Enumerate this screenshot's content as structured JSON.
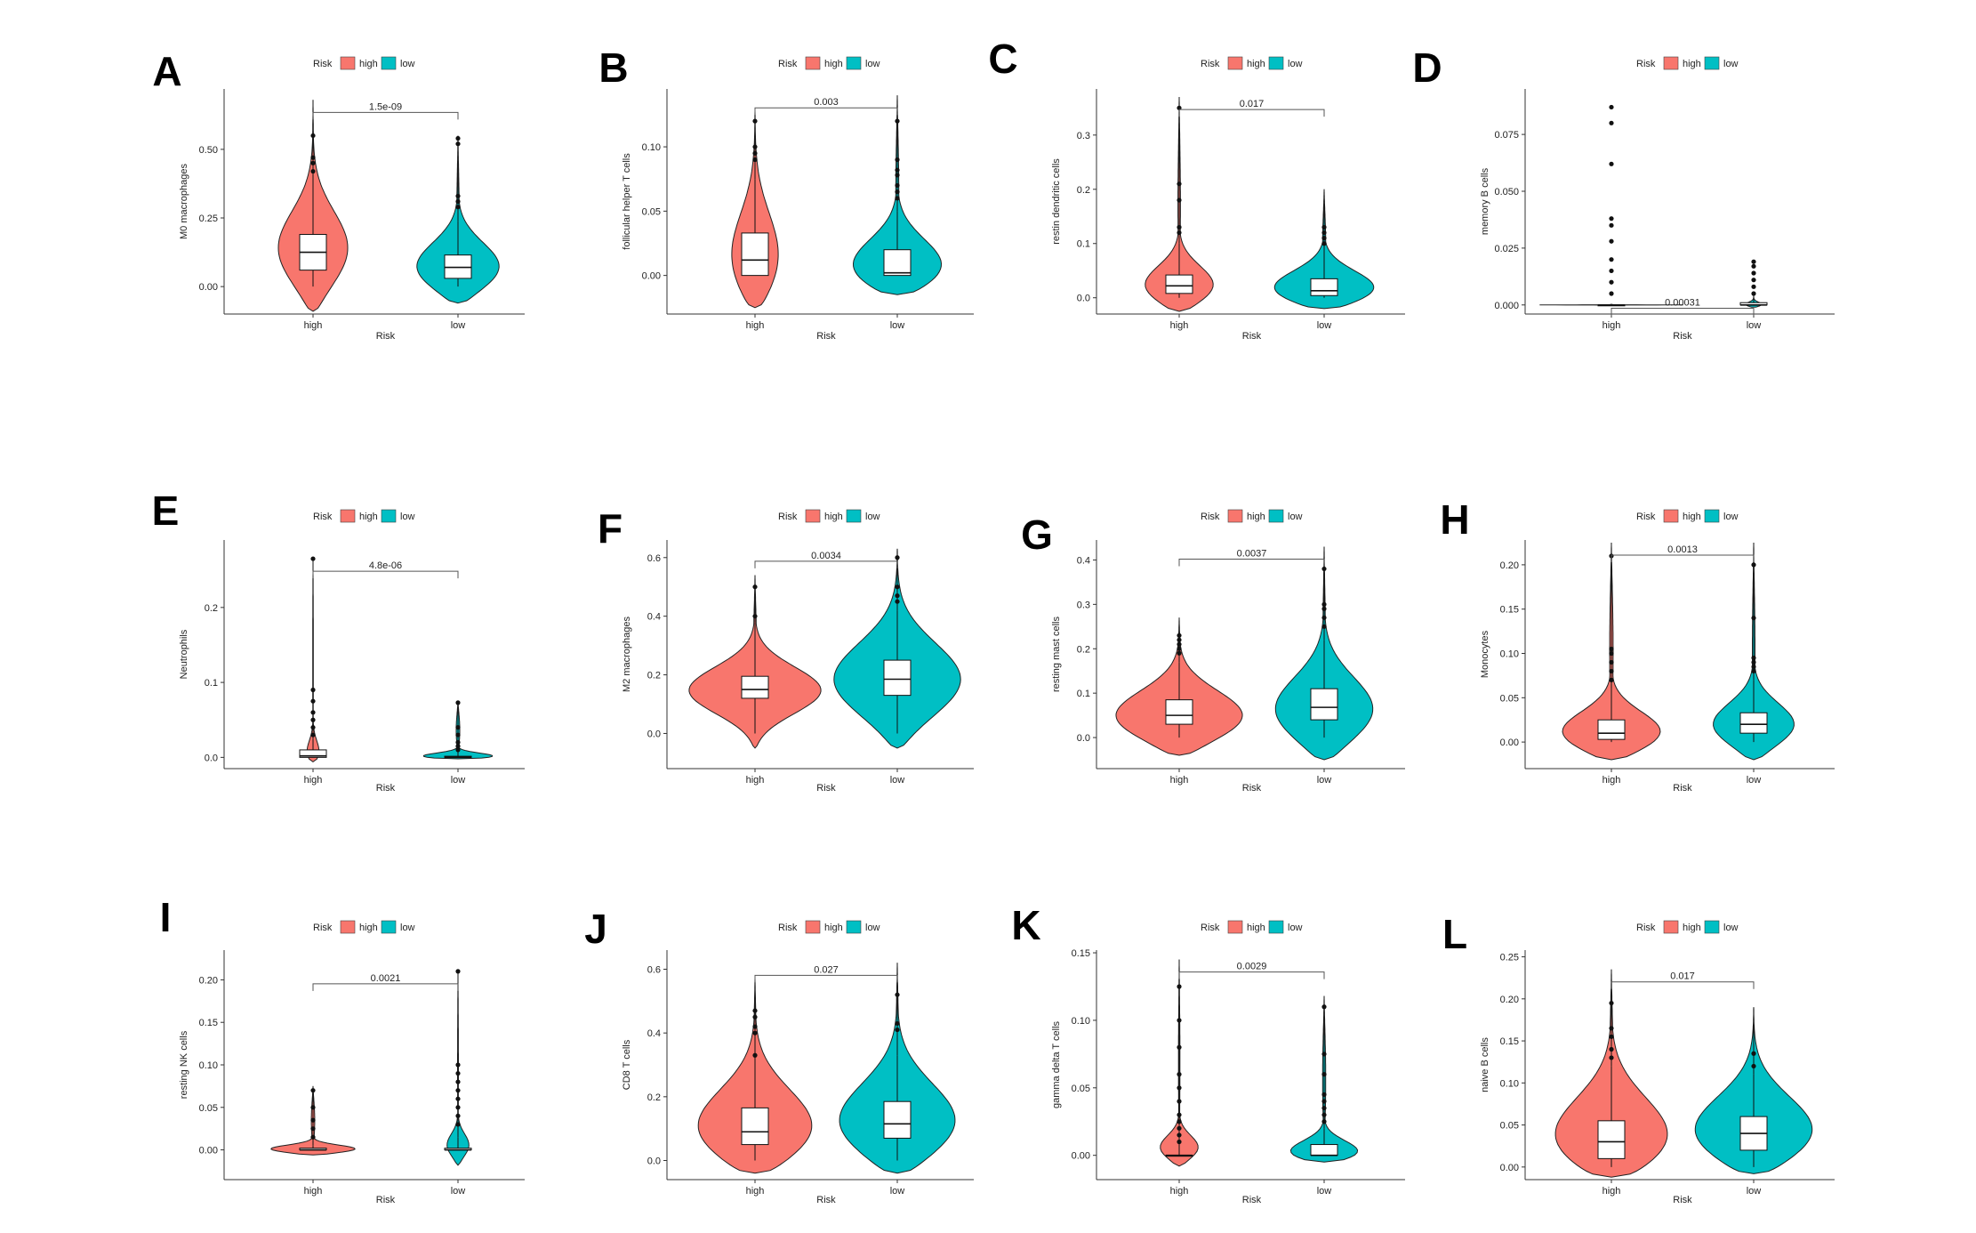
{
  "colors": {
    "high": "#F8766D",
    "low": "#00BFC4",
    "axis": "#333333"
  },
  "legend": {
    "title": "Risk",
    "items": [
      "high",
      "low"
    ]
  },
  "chart_data": [
    {
      "panel": "A",
      "type": "violin",
      "ylabel": "M0 macrophages",
      "xlabel": "Risk",
      "categories": [
        "high",
        "low"
      ],
      "ticks": [
        "0.00",
        "0.25",
        "0.50"
      ],
      "tick_values": [
        0,
        0.25,
        0.5
      ],
      "ylim": [
        -0.1,
        0.72
      ],
      "pvalue": "1.5e-09",
      "groups": [
        {
          "name": "high",
          "min": 0.0,
          "q1": 0.06,
          "median": 0.125,
          "q3": 0.19,
          "max": 0.5,
          "vmin": -0.09,
          "vmax": 0.68,
          "mode": 0.12,
          "width": 0.5,
          "outliers": [
            0.42,
            0.45,
            0.47,
            0.55
          ]
        },
        {
          "name": "low",
          "min": 0.0,
          "q1": 0.03,
          "median": 0.07,
          "q3": 0.115,
          "max": 0.24,
          "vmin": -0.06,
          "vmax": 0.55,
          "mode": 0.055,
          "width": 0.65,
          "outliers": [
            0.29,
            0.31,
            0.33,
            0.52,
            0.54
          ]
        }
      ]
    },
    {
      "panel": "B",
      "type": "violin",
      "ylabel": "follicular helper T cells",
      "xlabel": "Risk",
      "categories": [
        "high",
        "low"
      ],
      "ticks": [
        "0.00",
        "0.05",
        "0.10"
      ],
      "tick_values": [
        0,
        0.05,
        0.1
      ],
      "ylim": [
        -0.03,
        0.145
      ],
      "pvalue": "0.003",
      "groups": [
        {
          "name": "high",
          "min": 0.0,
          "q1": 0.0,
          "median": 0.012,
          "q3": 0.033,
          "max": 0.075,
          "vmin": -0.025,
          "vmax": 0.13,
          "mode": 0.008,
          "width": 0.35,
          "outliers": [
            0.09,
            0.095,
            0.1,
            0.12
          ]
        },
        {
          "name": "low",
          "min": 0.0,
          "q1": 0.0,
          "median": 0.002,
          "q3": 0.02,
          "max": 0.05,
          "vmin": -0.015,
          "vmax": 0.14,
          "mode": 0.002,
          "width": 0.8,
          "outliers": [
            0.06,
            0.065,
            0.07,
            0.078,
            0.082,
            0.09,
            0.12
          ]
        }
      ]
    },
    {
      "panel": "C",
      "type": "violin",
      "ylabel": "restin dendritic cells",
      "xlabel": "Risk",
      "categories": [
        "high",
        "low"
      ],
      "ticks": [
        "0.0",
        "0.1",
        "0.2",
        "0.3"
      ],
      "tick_values": [
        0,
        0.1,
        0.2,
        0.3
      ],
      "ylim": [
        -0.03,
        0.385
      ],
      "pvalue": "0.017",
      "groups": [
        {
          "name": "high",
          "min": 0.0,
          "q1": 0.008,
          "median": 0.022,
          "q3": 0.042,
          "max": 0.1,
          "vmin": -0.025,
          "vmax": 0.37,
          "mode": 0.015,
          "width": 0.65,
          "outliers": [
            0.12,
            0.13,
            0.18,
            0.21,
            0.35
          ]
        },
        {
          "name": "low",
          "min": 0.0,
          "q1": 0.004,
          "median": 0.013,
          "q3": 0.035,
          "max": 0.08,
          "vmin": -0.02,
          "vmax": 0.2,
          "mode": 0.01,
          "width": 0.85,
          "outliers": [
            0.1,
            0.11,
            0.12,
            0.13
          ]
        }
      ]
    },
    {
      "panel": "D",
      "type": "violin",
      "ylabel": "memory B cells",
      "xlabel": "Risk",
      "categories": [
        "high",
        "low"
      ],
      "ticks": [
        "0.000",
        "0.025",
        "0.050",
        "0.075"
      ],
      "tick_values": [
        0,
        0.025,
        0.05,
        0.075
      ],
      "ylim": [
        -0.004,
        0.095
      ],
      "pvalue": "0.00031",
      "groups": [
        {
          "name": "high",
          "min": 0.0,
          "q1": 0.0,
          "median": 0.0,
          "q3": 0.0,
          "max": 0.0,
          "vmin": -0.0003,
          "vmax": 0.0003,
          "mode": 0.0,
          "width": 0.95,
          "outliers": [
            0.005,
            0.01,
            0.015,
            0.02,
            0.028,
            0.035,
            0.038,
            0.062,
            0.08,
            0.087
          ]
        },
        {
          "name": "low",
          "min": 0.0,
          "q1": 0.0,
          "median": 0.0,
          "q3": 0.001,
          "max": 0.002,
          "vmin": -0.001,
          "vmax": 0.004,
          "mode": 0.0,
          "width": 0.12,
          "outliers": [
            0.005,
            0.008,
            0.011,
            0.014,
            0.017,
            0.019
          ]
        }
      ]
    },
    {
      "panel": "E",
      "type": "violin",
      "ylabel": "Neutrophils",
      "xlabel": "Risk",
      "categories": [
        "high",
        "low"
      ],
      "ticks": [
        "0.0",
        "0.1",
        "0.2"
      ],
      "tick_values": [
        0,
        0.1,
        0.2
      ],
      "ylim": [
        -0.015,
        0.29
      ],
      "pvalue": "4.8e-06",
      "groups": [
        {
          "name": "high",
          "min": 0.0,
          "q1": 0.0,
          "median": 0.002,
          "q3": 0.01,
          "max": 0.025,
          "vmin": -0.006,
          "vmax": 0.265,
          "mode": 0.002,
          "width": 0.16,
          "outliers": [
            0.03,
            0.04,
            0.05,
            0.06,
            0.075,
            0.09,
            0.265
          ]
        },
        {
          "name": "low",
          "min": 0.0,
          "q1": 0.0,
          "median": 0.0,
          "q3": 0.0015,
          "max": 0.004,
          "vmin": -0.002,
          "vmax": 0.075,
          "mode": 0.0,
          "width": 0.95,
          "outliers": [
            0.01,
            0.015,
            0.02,
            0.03,
            0.04,
            0.073
          ]
        }
      ]
    },
    {
      "panel": "F",
      "type": "violin",
      "ylabel": "M2 macrophages",
      "xlabel": "Risk",
      "categories": [
        "high",
        "low"
      ],
      "ticks": [
        "0.0",
        "0.2",
        "0.4",
        "0.6"
      ],
      "tick_values": [
        0,
        0.2,
        0.4,
        0.6
      ],
      "ylim": [
        -0.12,
        0.66
      ],
      "pvalue": "0.0034",
      "groups": [
        {
          "name": "high",
          "min": 0.0,
          "q1": 0.12,
          "median": 0.15,
          "q3": 0.195,
          "max": 0.38,
          "vmin": -0.05,
          "vmax": 0.54,
          "mode": 0.14,
          "width": 0.92,
          "outliers": [
            0.4,
            0.5
          ]
        },
        {
          "name": "low",
          "min": 0.0,
          "q1": 0.13,
          "median": 0.185,
          "q3": 0.25,
          "max": 0.42,
          "vmin": -0.05,
          "vmax": 0.63,
          "mode": 0.17,
          "width": 0.88,
          "outliers": [
            0.45,
            0.47,
            0.5,
            0.6
          ]
        }
      ]
    },
    {
      "panel": "G",
      "type": "violin",
      "ylabel": "resting mast cells",
      "xlabel": "Risk",
      "categories": [
        "high",
        "low"
      ],
      "ticks": [
        "0.0",
        "0.1",
        "0.2",
        "0.3",
        "0.4"
      ],
      "tick_values": [
        0,
        0.1,
        0.2,
        0.3,
        0.4
      ],
      "ylim": [
        -0.07,
        0.445
      ],
      "pvalue": "0.0037",
      "groups": [
        {
          "name": "high",
          "min": 0.0,
          "q1": 0.03,
          "median": 0.05,
          "q3": 0.085,
          "max": 0.17,
          "vmin": -0.04,
          "vmax": 0.27,
          "mode": 0.04,
          "width": 0.92,
          "outliers": [
            0.19,
            0.2,
            0.21,
            0.22,
            0.23
          ]
        },
        {
          "name": "low",
          "min": 0.0,
          "q1": 0.04,
          "median": 0.068,
          "q3": 0.11,
          "max": 0.22,
          "vmin": -0.05,
          "vmax": 0.43,
          "mode": 0.05,
          "width": 0.75,
          "outliers": [
            0.25,
            0.27,
            0.29,
            0.3,
            0.38
          ]
        }
      ]
    },
    {
      "panel": "H",
      "type": "violin",
      "ylabel": "Monocytes",
      "xlabel": "Risk",
      "categories": [
        "high",
        "low"
      ],
      "ticks": [
        "0.00",
        "0.05",
        "0.10",
        "0.15",
        "0.20"
      ],
      "tick_values": [
        0,
        0.05,
        0.1,
        0.15,
        0.2
      ],
      "ylim": [
        -0.03,
        0.228
      ],
      "pvalue": "0.0013",
      "groups": [
        {
          "name": "high",
          "min": 0.0,
          "q1": 0.003,
          "median": 0.01,
          "q3": 0.025,
          "max": 0.06,
          "vmin": -0.02,
          "vmax": 0.225,
          "mode": 0.006,
          "width": 0.92,
          "outliers": [
            0.07,
            0.08,
            0.09,
            0.1,
            0.105,
            0.21
          ]
        },
        {
          "name": "low",
          "min": 0.0,
          "q1": 0.01,
          "median": 0.02,
          "q3": 0.033,
          "max": 0.07,
          "vmin": -0.02,
          "vmax": 0.225,
          "mode": 0.015,
          "width": 0.7,
          "outliers": [
            0.08,
            0.085,
            0.09,
            0.095,
            0.14,
            0.2
          ]
        }
      ]
    },
    {
      "panel": "I",
      "type": "violin",
      "ylabel": "resting NK cells",
      "xlabel": "Risk",
      "categories": [
        "high",
        "low"
      ],
      "ticks": [
        "0.00",
        "0.05",
        "0.10",
        "0.15",
        "0.20"
      ],
      "tick_values": [
        0,
        0.05,
        0.1,
        0.15,
        0.2
      ],
      "ylim": [
        -0.035,
        0.235
      ],
      "pvalue": "0.0021",
      "groups": [
        {
          "name": "high",
          "min": 0.0,
          "q1": 0.0,
          "median": 0.0,
          "q3": 0.002,
          "max": 0.005,
          "vmin": -0.006,
          "vmax": 0.075,
          "mode": 0.0,
          "width": 0.9,
          "outliers": [
            0.015,
            0.025,
            0.035,
            0.05,
            0.07
          ]
        },
        {
          "name": "low",
          "min": 0.0,
          "q1": 0.0,
          "median": 0.0,
          "q3": 0.002,
          "max": 0.015,
          "vmin": -0.018,
          "vmax": 0.21,
          "mode": 0.003,
          "width": 0.22,
          "outliers": [
            0.03,
            0.04,
            0.05,
            0.06,
            0.07,
            0.08,
            0.09,
            0.1,
            0.21
          ]
        }
      ]
    },
    {
      "panel": "J",
      "type": "violin",
      "ylabel": "CD8 T cells",
      "xlabel": "Risk",
      "categories": [
        "high",
        "low"
      ],
      "ticks": [
        "0.0",
        "0.2",
        "0.4",
        "0.6"
      ],
      "tick_values": [
        0,
        0.2,
        0.4,
        0.6
      ],
      "ylim": [
        -0.06,
        0.66
      ],
      "pvalue": "0.027",
      "groups": [
        {
          "name": "high",
          "min": 0.0,
          "q1": 0.05,
          "median": 0.09,
          "q3": 0.165,
          "max": 0.3,
          "vmin": -0.04,
          "vmax": 0.58,
          "mode": 0.08,
          "width": 0.88,
          "outliers": [
            0.33,
            0.4,
            0.42,
            0.45,
            0.47
          ]
        },
        {
          "name": "low",
          "min": 0.0,
          "q1": 0.07,
          "median": 0.115,
          "q3": 0.185,
          "max": 0.33,
          "vmin": -0.04,
          "vmax": 0.62,
          "mode": 0.1,
          "width": 0.88,
          "outliers": [
            0.41,
            0.43,
            0.52
          ]
        }
      ]
    },
    {
      "panel": "K",
      "type": "violin",
      "ylabel": "gamma delta T cells",
      "xlabel": "Risk",
      "categories": [
        "high",
        "low"
      ],
      "ticks": [
        "0.00",
        "0.05",
        "0.10",
        "0.15"
      ],
      "tick_values": [
        0,
        0.05,
        0.1,
        0.15
      ],
      "ylim": [
        -0.018,
        0.152
      ],
      "pvalue": "0.0029",
      "groups": [
        {
          "name": "high",
          "min": 0.0,
          "q1": 0.0,
          "median": 0.0,
          "q3": 0.0,
          "max": 0.0,
          "vmin": -0.008,
          "vmax": 0.145,
          "mode": 0.004,
          "width": 0.4,
          "outliers": [
            0.01,
            0.015,
            0.02,
            0.025,
            0.03,
            0.04,
            0.05,
            0.06,
            0.08,
            0.1,
            0.125
          ]
        },
        {
          "name": "low",
          "min": 0.0,
          "q1": 0.0,
          "median": 0.0,
          "q3": 0.008,
          "max": 0.02,
          "vmin": -0.005,
          "vmax": 0.118,
          "mode": 0.0,
          "width": 0.82,
          "outliers": [
            0.025,
            0.03,
            0.035,
            0.04,
            0.045,
            0.06,
            0.075,
            0.11
          ]
        }
      ]
    },
    {
      "panel": "L",
      "type": "violin",
      "ylabel": "naive B cells",
      "xlabel": "Risk",
      "categories": [
        "high",
        "low"
      ],
      "ticks": [
        "0.00",
        "0.05",
        "0.10",
        "0.15",
        "0.20",
        "0.25"
      ],
      "tick_values": [
        0,
        0.05,
        0.1,
        0.15,
        0.2,
        0.25
      ],
      "ylim": [
        -0.015,
        0.258
      ],
      "pvalue": "0.017",
      "groups": [
        {
          "name": "high",
          "min": 0.0,
          "q1": 0.01,
          "median": 0.03,
          "q3": 0.055,
          "max": 0.12,
          "vmin": -0.012,
          "vmax": 0.235,
          "mode": 0.025,
          "width": 0.92,
          "outliers": [
            0.13,
            0.14,
            0.155,
            0.165,
            0.195
          ]
        },
        {
          "name": "low",
          "min": 0.0,
          "q1": 0.02,
          "median": 0.04,
          "q3": 0.06,
          "max": 0.11,
          "vmin": -0.008,
          "vmax": 0.19,
          "mode": 0.035,
          "width": 0.88,
          "outliers": [
            0.12,
            0.135
          ]
        }
      ]
    }
  ]
}
